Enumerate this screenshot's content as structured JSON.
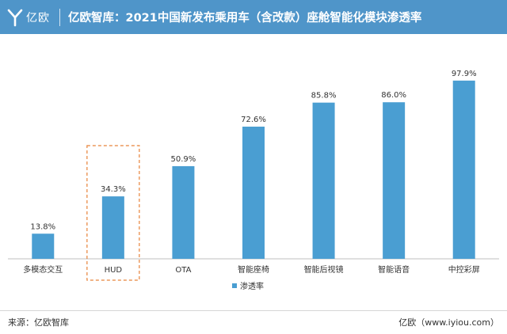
{
  "header": {
    "logo_text": "亿欧",
    "title": "亿欧智库：2021中国新发布乘用车（含改款）座舱智能化模块渗透率"
  },
  "chart_data": {
    "type": "bar",
    "categories": [
      "多模态交互",
      "HUD",
      "OTA",
      "智能座椅",
      "智能后视镜",
      "智能语音",
      "中控彩屏"
    ],
    "series": [
      {
        "name": "渗透率",
        "values": [
          13.8,
          34.3,
          50.9,
          72.6,
          85.8,
          86.0,
          97.9
        ]
      }
    ],
    "data_labels": [
      "13.8%",
      "34.3%",
      "50.9%",
      "72.6%",
      "85.8%",
      "86.0%",
      "97.9%"
    ],
    "unit": "%",
    "ylim": [
      0,
      100
    ],
    "grid": false,
    "legend_position": "bottom-center",
    "highlighted_category": "HUD",
    "bar_color": "#4a9ed2"
  },
  "footer": {
    "source": "来源：亿欧智库",
    "brand": "亿欧（www.iyiou.com）"
  }
}
